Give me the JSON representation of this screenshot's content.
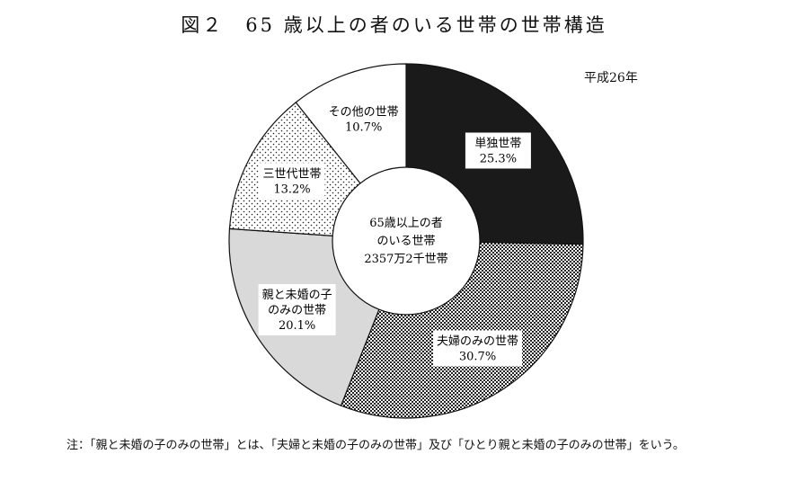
{
  "title": "図２　65 歳以上の者のいる世帯の世帯構造",
  "year_label": "平成26年",
  "note": "注：「親と未婚の子のみの世帯」とは、「夫婦と未婚の子のみの世帯」及び「ひとり親と未婚の子のみの世帯」をいう。",
  "center_label": [
    "65歳以上の者",
    "のいる世帯",
    "2357万2千世帯"
  ],
  "colors": {
    "single": "#1a1a1a",
    "couple_pattern": "checker",
    "parent_child": "#d9d9d9",
    "three_gen_pattern": "dots",
    "other": "#ffffff"
  },
  "chart_data": {
    "type": "pie",
    "variant": "donut",
    "unit": "%",
    "slices": [
      {
        "name": "単独世帯",
        "value": 25.3,
        "display": "25.3%",
        "fill": "solid-black"
      },
      {
        "name": "夫婦のみの世帯",
        "value": 30.7,
        "display": "30.7%",
        "fill": "checker"
      },
      {
        "name": "親と未婚の子のみの世帯",
        "name_lines": [
          "親と未婚の子",
          "のみの世帯"
        ],
        "value": 20.1,
        "display": "20.1%",
        "fill": "light-gray"
      },
      {
        "name": "三世代世帯",
        "value": 13.2,
        "display": "13.2%",
        "fill": "dots"
      },
      {
        "name": "その他の世帯",
        "value": 10.7,
        "display": "10.7%",
        "fill": "white"
      }
    ]
  }
}
